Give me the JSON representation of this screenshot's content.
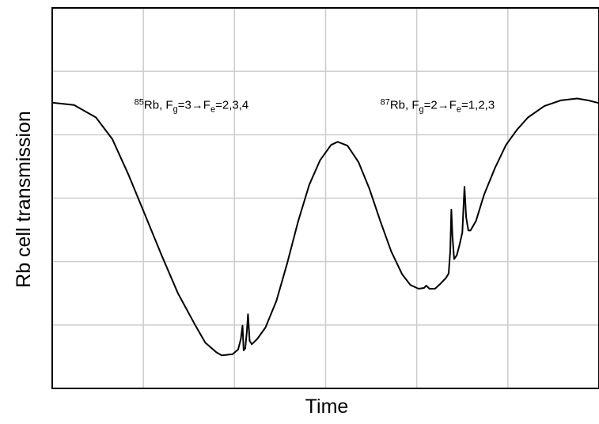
{
  "chart_data": {
    "type": "line",
    "xlabel": "Time",
    "ylabel": "Rb cell transmission",
    "grid": true,
    "x_gridlines": 5,
    "y_gridlines": 5,
    "x_tick_labels": [],
    "y_tick_labels": [],
    "xlim": [
      0,
      1
    ],
    "ylim": [
      0,
      1
    ],
    "annotations": [
      {
        "id": "rb85",
        "segments": [
          {
            "text": "85",
            "role": "sup"
          },
          {
            "text": "Rb, F",
            "role": "normal"
          },
          {
            "text": "g",
            "role": "sub"
          },
          {
            "text": "=3→F",
            "role": "normal"
          },
          {
            "text": "e",
            "role": "sub"
          },
          {
            "text": "=2,3,4",
            "role": "normal"
          }
        ],
        "x": 0.15,
        "y": 0.735
      },
      {
        "id": "rb87",
        "segments": [
          {
            "text": "87",
            "role": "sup"
          },
          {
            "text": "Rb, F",
            "role": "normal"
          },
          {
            "text": "g",
            "role": "sub"
          },
          {
            "text": "=2→F",
            "role": "normal"
          },
          {
            "text": "e",
            "role": "sub"
          },
          {
            "text": "=1,2,3",
            "role": "normal"
          }
        ],
        "x": 0.6,
        "y": 0.735
      }
    ],
    "series": [
      {
        "color": "#000000",
        "points": [
          [
            0.0,
            0.751
          ],
          [
            0.04,
            0.745
          ],
          [
            0.08,
            0.712
          ],
          [
            0.11,
            0.655
          ],
          [
            0.14,
            0.56
          ],
          [
            0.17,
            0.455
          ],
          [
            0.2,
            0.35
          ],
          [
            0.23,
            0.25
          ],
          [
            0.26,
            0.17
          ],
          [
            0.28,
            0.12
          ],
          [
            0.3,
            0.095
          ],
          [
            0.31,
            0.087
          ],
          [
            0.33,
            0.09
          ],
          [
            0.34,
            0.102
          ],
          [
            0.345,
            0.13
          ],
          [
            0.348,
            0.165
          ],
          [
            0.35,
            0.1
          ],
          [
            0.353,
            0.105
          ],
          [
            0.356,
            0.15
          ],
          [
            0.358,
            0.195
          ],
          [
            0.361,
            0.125
          ],
          [
            0.365,
            0.116
          ],
          [
            0.375,
            0.13
          ],
          [
            0.39,
            0.16
          ],
          [
            0.41,
            0.23
          ],
          [
            0.43,
            0.33
          ],
          [
            0.45,
            0.44
          ],
          [
            0.47,
            0.535
          ],
          [
            0.49,
            0.6
          ],
          [
            0.51,
            0.64
          ],
          [
            0.522,
            0.648
          ],
          [
            0.54,
            0.638
          ],
          [
            0.56,
            0.595
          ],
          [
            0.58,
            0.525
          ],
          [
            0.6,
            0.44
          ],
          [
            0.62,
            0.36
          ],
          [
            0.64,
            0.3
          ],
          [
            0.655,
            0.272
          ],
          [
            0.67,
            0.262
          ],
          [
            0.68,
            0.264
          ],
          [
            0.684,
            0.27
          ],
          [
            0.69,
            0.262
          ],
          [
            0.7,
            0.262
          ],
          [
            0.71,
            0.275
          ],
          [
            0.72,
            0.29
          ],
          [
            0.725,
            0.302
          ],
          [
            0.728,
            0.36
          ],
          [
            0.73,
            0.47
          ],
          [
            0.732,
            0.4
          ],
          [
            0.735,
            0.34
          ],
          [
            0.74,
            0.35
          ],
          [
            0.745,
            0.378
          ],
          [
            0.75,
            0.41
          ],
          [
            0.752,
            0.47
          ],
          [
            0.754,
            0.53
          ],
          [
            0.757,
            0.45
          ],
          [
            0.761,
            0.415
          ],
          [
            0.765,
            0.415
          ],
          [
            0.775,
            0.44
          ],
          [
            0.79,
            0.51
          ],
          [
            0.81,
            0.58
          ],
          [
            0.83,
            0.64
          ],
          [
            0.85,
            0.68
          ],
          [
            0.87,
            0.712
          ],
          [
            0.9,
            0.742
          ],
          [
            0.93,
            0.757
          ],
          [
            0.96,
            0.762
          ],
          [
            0.98,
            0.757
          ],
          [
            1.0,
            0.75
          ]
        ]
      }
    ]
  }
}
